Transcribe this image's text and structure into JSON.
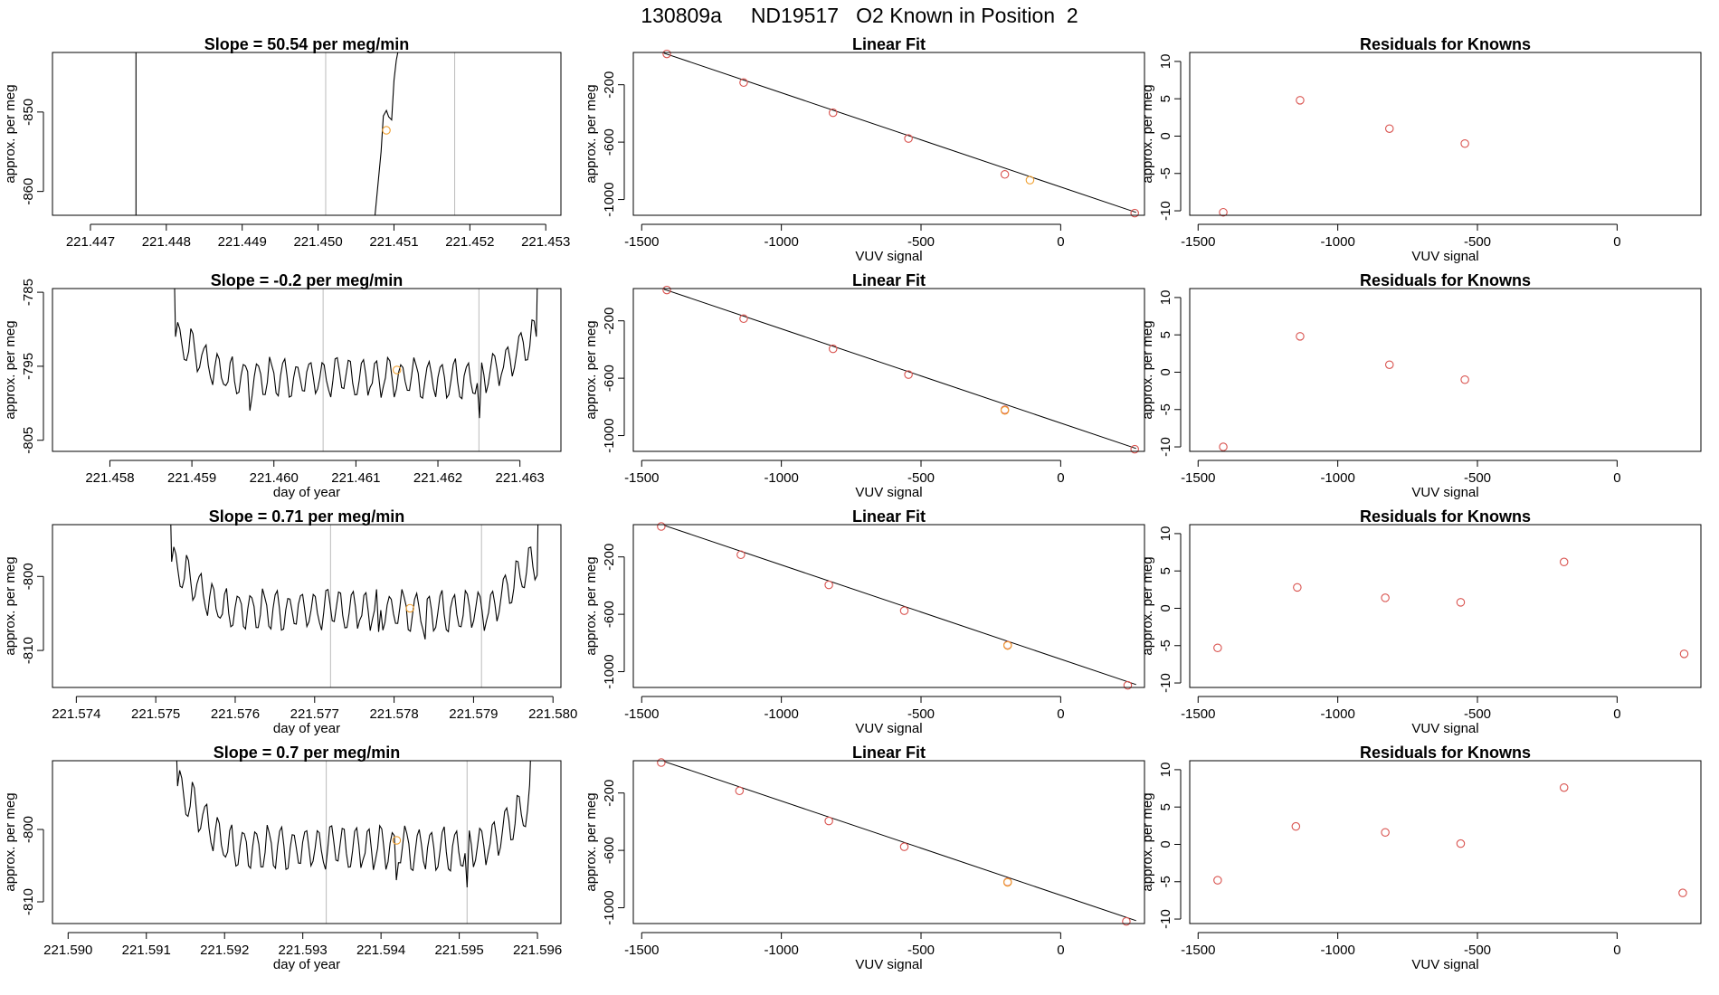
{
  "page": {
    "title": "130809a     ND19517   O2 Known in Position  2"
  },
  "colors": {
    "trace": "#000000",
    "frame": "#000000",
    "marker_red": "#d9534f",
    "marker_orange": "#f0a030",
    "vline": "#bbbbbb"
  },
  "chart_data": [
    {
      "type": "line",
      "row": 0,
      "panel": "timeseries",
      "title": "Slope =  50.54  per meg/min",
      "xlabel": "",
      "ylabel": "approx. per meg",
      "xlim": [
        221.4465,
        221.4532
      ],
      "ylim": [
        -863,
        -842.5
      ],
      "xticks": [
        221.447,
        221.448,
        221.449,
        221.45,
        221.451,
        221.452,
        221.453
      ],
      "xtick_labels": [
        "221.447",
        "221.448",
        "221.449",
        "221.450",
        "221.451",
        "221.452",
        "221.453"
      ],
      "yticks": [
        -860,
        -850
      ],
      "ytick_labels": [
        "-860",
        "-850"
      ],
      "vlines": [
        221.4501,
        221.4518
      ],
      "series": [
        {
          "values": [
            [
              221.4476,
              -842.5
            ],
            [
              221.4476,
              -863
            ]
          ]
        },
        {
          "values": [
            [
              221.45075,
              -863
            ],
            [
              221.4508,
              -858
            ],
            [
              221.45083,
              -855
            ],
            [
              221.45086,
              -850.5
            ],
            [
              221.4509,
              -849.8
            ],
            [
              221.45093,
              -850.6
            ],
            [
              221.45097,
              -851
            ],
            [
              221.451,
              -846
            ],
            [
              221.45103,
              -843.5
            ],
            [
              221.45105,
              -842.5
            ]
          ]
        }
      ],
      "points": [
        {
          "x": 221.4509,
          "y": -852.3,
          "color": "orange"
        }
      ]
    },
    {
      "type": "scatter",
      "row": 0,
      "panel": "fit",
      "title": "Linear Fit",
      "xlabel": "VUV signal",
      "ylabel": "approx. per meg",
      "xlim": [
        -1530,
        300
      ],
      "ylim": [
        -1110,
        25
      ],
      "xticks": [
        -1500,
        -1000,
        -500,
        0
      ],
      "xtick_labels": [
        "-1500",
        "-1000",
        "-500",
        "0"
      ],
      "yticks": [
        -200,
        -600,
        -1000
      ],
      "ytick_labels": [
        "-200",
        "-600",
        "-1000"
      ],
      "fit_line": [
        [
          -1420,
          20
        ],
        [
          270,
          -1090
        ]
      ],
      "points": [
        {
          "x": -1410,
          "y": 15,
          "color": "red"
        },
        {
          "x": -1135,
          "y": -185,
          "color": "red"
        },
        {
          "x": -815,
          "y": -395,
          "color": "red"
        },
        {
          "x": -545,
          "y": -575,
          "color": "red"
        },
        {
          "x": -200,
          "y": -825,
          "color": "red"
        },
        {
          "x": -110,
          "y": -865,
          "color": "orange"
        },
        {
          "x": 265,
          "y": -1095,
          "color": "red"
        }
      ]
    },
    {
      "type": "scatter",
      "row": 0,
      "panel": "residuals",
      "title": "Residuals for Knowns",
      "xlabel": "VUV signal",
      "ylabel": "approx. per meg",
      "xlim": [
        -1530,
        300
      ],
      "ylim": [
        -10.6,
        11.2
      ],
      "xticks": [
        -1500,
        -1000,
        -500,
        0
      ],
      "xtick_labels": [
        "-1500",
        "-1000",
        "-500",
        "0"
      ],
      "yticks": [
        -10,
        -5,
        0,
        5,
        10
      ],
      "ytick_labels": [
        "-10",
        "-5",
        "0",
        "5",
        "10"
      ],
      "points": [
        {
          "x": -1410,
          "y": -10.2,
          "color": "red"
        },
        {
          "x": -1135,
          "y": 4.8,
          "color": "red"
        },
        {
          "x": -815,
          "y": 1.0,
          "color": "red"
        },
        {
          "x": -545,
          "y": -1.0,
          "color": "red"
        }
      ]
    },
    {
      "type": "line",
      "row": 1,
      "panel": "timeseries",
      "title": "Slope =  -0.2  per meg/min",
      "xlabel": "day of year",
      "ylabel": "approx. per meg",
      "xlim": [
        221.4573,
        221.4635
      ],
      "ylim": [
        -806.5,
        -784.5
      ],
      "xticks": [
        221.458,
        221.459,
        221.46,
        221.461,
        221.462,
        221.463
      ],
      "xtick_labels": [
        "221.458",
        "221.459",
        "221.460",
        "221.461",
        "221.462",
        "221.463"
      ],
      "yticks": [
        -805,
        -795,
        -785
      ],
      "ytick_labels": [
        "-805",
        "-795",
        "-785"
      ],
      "vlines": [
        221.4606,
        221.4625
      ],
      "series": [
        {
          "generator": "wiggle",
          "x0": 221.4588,
          "x1": 221.4632,
          "base": -796.5,
          "amp": 2.4,
          "period": 0.00016,
          "edge_top": -784.5,
          "edge_start": -791,
          "edge_end": -791,
          "dip_at": 221.4597,
          "dip_value": -801,
          "dip2_at": 221.4625,
          "dip2_value": -802
        }
      ],
      "points": [
        {
          "x": 221.4615,
          "y": -795.5,
          "color": "orange"
        }
      ]
    },
    {
      "type": "scatter",
      "row": 1,
      "panel": "fit",
      "title": "Linear Fit",
      "xlabel": "VUV signal",
      "ylabel": "approx. per meg",
      "xlim": [
        -1530,
        300
      ],
      "ylim": [
        -1110,
        25
      ],
      "xticks": [
        -1500,
        -1000,
        -500,
        0
      ],
      "xtick_labels": [
        "-1500",
        "-1000",
        "-500",
        "0"
      ],
      "yticks": [
        -200,
        -600,
        -1000
      ],
      "ytick_labels": [
        "-200",
        "-600",
        "-1000"
      ],
      "fit_line": [
        [
          -1420,
          20
        ],
        [
          270,
          -1090
        ]
      ],
      "points": [
        {
          "x": -1410,
          "y": 15,
          "color": "red"
        },
        {
          "x": -1135,
          "y": -185,
          "color": "red"
        },
        {
          "x": -815,
          "y": -395,
          "color": "red"
        },
        {
          "x": -545,
          "y": -575,
          "color": "red"
        },
        {
          "x": -200,
          "y": -820,
          "color": "red"
        },
        {
          "x": -200,
          "y": -825,
          "color": "orange"
        },
        {
          "x": 265,
          "y": -1095,
          "color": "red"
        }
      ]
    },
    {
      "type": "scatter",
      "row": 1,
      "panel": "residuals",
      "title": "Residuals for Knowns",
      "xlabel": "VUV signal",
      "ylabel": "approx. per meg",
      "xlim": [
        -1530,
        300
      ],
      "ylim": [
        -10.6,
        11.2
      ],
      "xticks": [
        -1500,
        -1000,
        -500,
        0
      ],
      "xtick_labels": [
        "-1500",
        "-1000",
        "-500",
        "0"
      ],
      "yticks": [
        -10,
        -5,
        0,
        5,
        10
      ],
      "ytick_labels": [
        "-10",
        "-5",
        "0",
        "5",
        "10"
      ],
      "points": [
        {
          "x": -1410,
          "y": -10.0,
          "color": "red"
        },
        {
          "x": -1135,
          "y": 4.8,
          "color": "red"
        },
        {
          "x": -815,
          "y": 1.0,
          "color": "red"
        },
        {
          "x": -545,
          "y": -1.0,
          "color": "red"
        }
      ]
    },
    {
      "type": "line",
      "row": 2,
      "panel": "timeseries",
      "title": "Slope =  0.71  per meg/min",
      "xlabel": "day of year",
      "ylabel": "approx. per meg",
      "xlim": [
        221.5737,
        221.5801
      ],
      "ylim": [
        -815,
        -793
      ],
      "xticks": [
        221.574,
        221.575,
        221.576,
        221.577,
        221.578,
        221.579,
        221.58
      ],
      "xtick_labels": [
        "221.574",
        "221.575",
        "221.576",
        "221.577",
        "221.578",
        "221.579",
        "221.580"
      ],
      "yticks": [
        -810,
        -800
      ],
      "ytick_labels": [
        "-810",
        "-800"
      ],
      "vlines": [
        221.5772,
        221.5791
      ],
      "series": [
        {
          "generator": "wiggle",
          "x0": 221.5752,
          "x1": 221.5798,
          "base": -804.5,
          "amp": 2.5,
          "period": 0.00016,
          "edge_top": -793,
          "edge_start": -798,
          "edge_end": -798,
          "dip_at": 221.5784,
          "dip_value": -808.5,
          "dip2_at": 221.5778,
          "dip2_value": -807.5
        }
      ],
      "points": [
        {
          "x": 221.5782,
          "y": -804.3,
          "color": "orange"
        }
      ]
    },
    {
      "type": "scatter",
      "row": 2,
      "panel": "fit",
      "title": "Linear Fit",
      "xlabel": "VUV signal",
      "ylabel": "approx. per meg",
      "xlim": [
        -1530,
        300
      ],
      "ylim": [
        -1110,
        25
      ],
      "xticks": [
        -1500,
        -1000,
        -500,
        0
      ],
      "xtick_labels": [
        "-1500",
        "-1000",
        "-500",
        "0"
      ],
      "yticks": [
        -200,
        -600,
        -1000
      ],
      "ytick_labels": [
        "-200",
        "-600",
        "-1000"
      ],
      "fit_line": [
        [
          -1420,
          20
        ],
        [
          270,
          -1090
        ]
      ],
      "points": [
        {
          "x": -1430,
          "y": 12,
          "color": "red"
        },
        {
          "x": -1145,
          "y": -185,
          "color": "red"
        },
        {
          "x": -830,
          "y": -395,
          "color": "red"
        },
        {
          "x": -560,
          "y": -575,
          "color": "red"
        },
        {
          "x": -190,
          "y": -815,
          "color": "red"
        },
        {
          "x": -190,
          "y": -818,
          "color": "orange"
        },
        {
          "x": 240,
          "y": -1095,
          "color": "red"
        }
      ]
    },
    {
      "type": "scatter",
      "row": 2,
      "panel": "residuals",
      "title": "Residuals for Knowns",
      "xlabel": "VUV signal",
      "ylabel": "approx. per meg",
      "xlim": [
        -1530,
        300
      ],
      "ylim": [
        -10.6,
        11.2
      ],
      "xticks": [
        -1500,
        -1000,
        -500,
        0
      ],
      "xtick_labels": [
        "-1500",
        "-1000",
        "-500",
        "0"
      ],
      "yticks": [
        -10,
        -5,
        0,
        5,
        10
      ],
      "ytick_labels": [
        "-10",
        "-5",
        "0",
        "5",
        "10"
      ],
      "points": [
        {
          "x": -1430,
          "y": -5.3,
          "color": "red"
        },
        {
          "x": -1145,
          "y": 2.8,
          "color": "red"
        },
        {
          "x": -830,
          "y": 1.4,
          "color": "red"
        },
        {
          "x": -560,
          "y": 0.8,
          "color": "red"
        },
        {
          "x": -190,
          "y": 6.2,
          "color": "red"
        },
        {
          "x": 240,
          "y": -6.1,
          "color": "red"
        }
      ]
    },
    {
      "type": "line",
      "row": 3,
      "panel": "timeseries",
      "title": "Slope =  0.7  per meg/min",
      "xlabel": "day of year",
      "ylabel": "approx. per meg",
      "xlim": [
        221.5898,
        221.5963
      ],
      "ylim": [
        -813,
        -790.5
      ],
      "xticks": [
        221.59,
        221.591,
        221.592,
        221.593,
        221.594,
        221.595,
        221.596
      ],
      "xtick_labels": [
        "221.590",
        "221.591",
        "221.592",
        "221.593",
        "221.594",
        "221.595",
        "221.596"
      ],
      "yticks": [
        -810,
        -800
      ],
      "ytick_labels": [
        "-810",
        "-800"
      ],
      "vlines": [
        221.5933,
        221.5951
      ],
      "series": [
        {
          "generator": "wiggle",
          "x0": 221.5914,
          "x1": 221.5959,
          "base": -802.5,
          "amp": 2.8,
          "period": 0.00016,
          "edge_top": -790.5,
          "edge_start": -794,
          "edge_end": -797,
          "dip_at": 221.5951,
          "dip_value": -808,
          "dip2_at": 221.5942,
          "dip2_value": -807
        }
      ],
      "points": [
        {
          "x": 221.5942,
          "y": -801.5,
          "color": "orange"
        }
      ]
    },
    {
      "type": "scatter",
      "row": 3,
      "panel": "fit",
      "title": "Linear Fit",
      "xlabel": "VUV signal",
      "ylabel": "approx. per meg",
      "xlim": [
        -1530,
        300
      ],
      "ylim": [
        -1110,
        25
      ],
      "xticks": [
        -1500,
        -1000,
        -500,
        0
      ],
      "xtick_labels": [
        "-1500",
        "-1000",
        "-500",
        "0"
      ],
      "yticks": [
        -200,
        -600,
        -1000
      ],
      "ytick_labels": [
        "-200",
        "-600",
        "-1000"
      ],
      "fit_line": [
        [
          -1420,
          20
        ],
        [
          270,
          -1090
        ]
      ],
      "points": [
        {
          "x": -1430,
          "y": 12,
          "color": "red"
        },
        {
          "x": -1150,
          "y": -185,
          "color": "red"
        },
        {
          "x": -830,
          "y": -395,
          "color": "red"
        },
        {
          "x": -560,
          "y": -575,
          "color": "red"
        },
        {
          "x": -190,
          "y": -820,
          "color": "red"
        },
        {
          "x": -190,
          "y": -823,
          "color": "orange"
        },
        {
          "x": 235,
          "y": -1095,
          "color": "red"
        }
      ]
    },
    {
      "type": "scatter",
      "row": 3,
      "panel": "residuals",
      "title": "Residuals for Knowns",
      "xlabel": "VUV signal",
      "ylabel": "approx. per meg",
      "xlim": [
        -1530,
        300
      ],
      "ylim": [
        -10.6,
        11.2
      ],
      "xticks": [
        -1500,
        -1000,
        -500,
        0
      ],
      "xtick_labels": [
        "-1500",
        "-1000",
        "-500",
        "0"
      ],
      "yticks": [
        -10,
        -5,
        0,
        5,
        10
      ],
      "ytick_labels": [
        "-10",
        "-5",
        "0",
        "5",
        "10"
      ],
      "points": [
        {
          "x": -1430,
          "y": -4.8,
          "color": "red"
        },
        {
          "x": -1150,
          "y": 2.4,
          "color": "red"
        },
        {
          "x": -830,
          "y": 1.6,
          "color": "red"
        },
        {
          "x": -560,
          "y": 0.1,
          "color": "red"
        },
        {
          "x": -190,
          "y": 7.6,
          "color": "red"
        },
        {
          "x": 235,
          "y": -6.5,
          "color": "red"
        }
      ]
    }
  ]
}
